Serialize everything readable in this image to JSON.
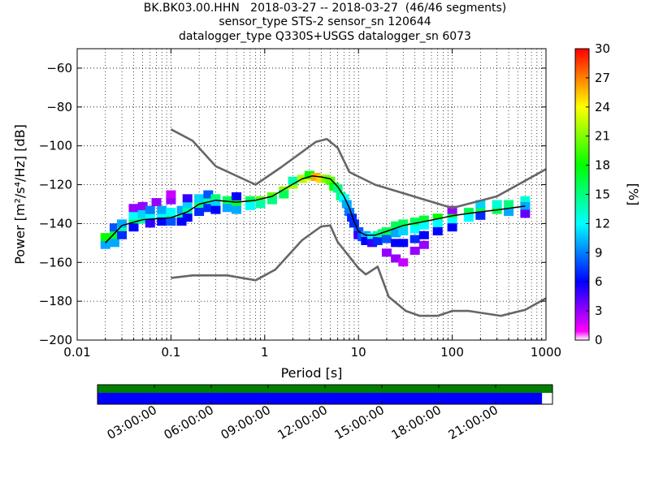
{
  "header": {
    "line1": "BK.BK03.00.HHN   2018-03-27 -- 2018-03-27  (46/46 segments)",
    "line2": "sensor_type STS-2 sensor_sn 120644",
    "line3": "datalogger_type Q330S+USGS datalogger_sn 6073"
  },
  "colorbar": {
    "label": "[%]",
    "ticks": [
      "0",
      "3",
      "6",
      "9",
      "12",
      "15",
      "18",
      "21",
      "24",
      "27",
      "30"
    ]
  },
  "timeline": {
    "labels": [
      "03:00:00",
      "06:00:00",
      "09:00:00",
      "12:00:00",
      "15:00:00",
      "18:00:00",
      "21:00:00"
    ],
    "coverage_fraction": 0.977,
    "colors": {
      "segments": "#008000",
      "coverage": "#0000ff"
    }
  },
  "chart_data": {
    "type": "heatmap",
    "title": "BK.BK03.00.HHN   2018-03-27 -- 2018-03-27  (46/46 segments)",
    "xlabel": "Period [s]",
    "ylabel": "Power [m²/s⁴/Hz] [dB]",
    "xscale": "log",
    "xlim": [
      0.01,
      1000
    ],
    "ylim": [
      -200,
      -50
    ],
    "xticks": [
      0.01,
      0.1,
      1,
      10,
      100,
      1000
    ],
    "xtick_labels": [
      "0.01",
      "0.1",
      "1",
      "10",
      "100",
      "1000"
    ],
    "yticks": [
      -200,
      -180,
      -160,
      -140,
      -120,
      -100,
      -80,
      -60
    ],
    "ytick_labels": [
      "−200",
      "−180",
      "−160",
      "−140",
      "−120",
      "−100",
      "−80",
      "−60"
    ],
    "grid": true,
    "series": [
      {
        "role": "noise-model-high",
        "color": "#666666",
        "x": [
          0.1,
          0.17,
          0.3,
          0.8,
          1.5,
          3.5,
          4.6,
          6,
          8,
          15,
          100,
          300,
          1000
        ],
        "y": [
          -91.5,
          -97.4,
          -110.5,
          -120,
          -111,
          -98,
          -96.5,
          -101,
          -113.5,
          -120,
          -132,
          -126,
          -112
        ]
      },
      {
        "role": "noise-model-low",
        "color": "#666666",
        "x": [
          0.1,
          0.17,
          0.4,
          0.8,
          1.3,
          2.5,
          4,
          5,
          6,
          10,
          12,
          16,
          21,
          32,
          45,
          70,
          100,
          150,
          330,
          600,
          1000
        ],
        "y": [
          -168,
          -166.7,
          -166.7,
          -169.2,
          -163.7,
          -148.6,
          -141.5,
          -141,
          -149.5,
          -163,
          -166.2,
          -162.2,
          -177.7,
          -185,
          -187.5,
          -187.5,
          -185,
          -185,
          -187.5,
          -184.4,
          -178.5
        ]
      },
      {
        "role": "mean",
        "color": "#000000",
        "x": [
          0.02,
          0.03,
          0.05,
          0.1,
          0.15,
          0.2,
          0.3,
          0.5,
          0.8,
          1.2,
          1.8,
          2.5,
          3.2,
          4,
          5,
          6,
          7,
          8,
          9,
          10,
          12,
          15,
          20,
          30,
          50,
          80,
          100,
          200,
          300,
          600
        ],
        "y": [
          -150,
          -141,
          -138,
          -137,
          -134,
          -130,
          -128,
          -129,
          -128,
          -126,
          -121,
          -117,
          -115.5,
          -116,
          -117,
          -121,
          -126,
          -132,
          -139,
          -144,
          -146,
          -146,
          -144,
          -141,
          -139,
          -137,
          -136,
          -134,
          -133,
          -131
        ]
      }
    ],
    "density": {
      "unit": "%",
      "range": [
        0,
        30
      ],
      "bins": [
        [
          0.02,
          -151,
          10
        ],
        [
          0.02,
          -147,
          18
        ],
        [
          0.025,
          -146,
          17
        ],
        [
          0.025,
          -150,
          10
        ],
        [
          0.025,
          -142,
          8
        ],
        [
          0.03,
          -143,
          14
        ],
        [
          0.03,
          -140,
          10
        ],
        [
          0.03,
          -146,
          7
        ],
        [
          0.04,
          -139,
          16
        ],
        [
          0.04,
          -136,
          12
        ],
        [
          0.04,
          -142,
          6
        ],
        [
          0.04,
          -132,
          3
        ],
        [
          0.05,
          -138,
          14
        ],
        [
          0.05,
          -135,
          11
        ],
        [
          0.05,
          -131,
          3
        ],
        [
          0.06,
          -137,
          12
        ],
        [
          0.06,
          -133,
          9
        ],
        [
          0.06,
          -140,
          5
        ],
        [
          0.07,
          -129,
          3
        ],
        [
          0.08,
          -136,
          12
        ],
        [
          0.08,
          -133,
          10
        ],
        [
          0.08,
          -139,
          6
        ],
        [
          0.1,
          -137,
          15
        ],
        [
          0.1,
          -134,
          12
        ],
        [
          0.1,
          -139,
          8
        ],
        [
          0.1,
          -128,
          3
        ],
        [
          0.1,
          -125,
          2
        ],
        [
          0.13,
          -136,
          14
        ],
        [
          0.13,
          -133,
          10
        ],
        [
          0.13,
          -139,
          6
        ],
        [
          0.15,
          -133,
          14
        ],
        [
          0.15,
          -130,
          11
        ],
        [
          0.15,
          -127,
          5
        ],
        [
          0.15,
          -137,
          6
        ],
        [
          0.2,
          -130,
          15
        ],
        [
          0.2,
          -127,
          11
        ],
        [
          0.2,
          -134,
          7
        ],
        [
          0.25,
          -128,
          14
        ],
        [
          0.25,
          -125,
          8
        ],
        [
          0.25,
          -132,
          7
        ],
        [
          0.3,
          -127,
          15
        ],
        [
          0.3,
          -130,
          11
        ],
        [
          0.3,
          -133,
          6
        ],
        [
          0.4,
          -128,
          16
        ],
        [
          0.4,
          -132,
          10
        ],
        [
          0.5,
          -129,
          17
        ],
        [
          0.5,
          -133,
          10
        ],
        [
          0.5,
          -126,
          6
        ],
        [
          0.7,
          -128,
          16
        ],
        [
          0.7,
          -131,
          12
        ],
        [
          0.9,
          -128,
          20
        ],
        [
          0.9,
          -130,
          14
        ],
        [
          1.2,
          -126,
          20
        ],
        [
          1.2,
          -128,
          15
        ],
        [
          1.6,
          -123,
          21
        ],
        [
          1.6,
          -125,
          16
        ],
        [
          2,
          -120,
          22
        ],
        [
          2,
          -118,
          14
        ],
        [
          2.5,
          -117,
          22
        ],
        [
          3,
          -116,
          24
        ],
        [
          3,
          -115,
          18
        ],
        [
          3.5,
          -116,
          26
        ],
        [
          4,
          -117,
          25
        ],
        [
          4.5,
          -117,
          21
        ],
        [
          5,
          -118,
          20
        ],
        [
          5.5,
          -121,
          18
        ],
        [
          6,
          -122,
          15
        ],
        [
          6.5,
          -126,
          15
        ],
        [
          7,
          -127,
          12
        ],
        [
          7.5,
          -130,
          10
        ],
        [
          8,
          -134,
          9
        ],
        [
          8.5,
          -137,
          7
        ],
        [
          9,
          -140,
          7
        ],
        [
          10,
          -144,
          8
        ],
        [
          10,
          -146,
          5
        ],
        [
          11,
          -147,
          8
        ],
        [
          12,
          -146,
          10
        ],
        [
          12,
          -149,
          6
        ],
        [
          14,
          -147,
          12
        ],
        [
          14,
          -150,
          5
        ],
        [
          16,
          -146,
          14
        ],
        [
          16,
          -149,
          7
        ],
        [
          18,
          -145,
          15
        ],
        [
          20,
          -144,
          16
        ],
        [
          20,
          -148,
          8
        ],
        [
          20,
          -155,
          3
        ],
        [
          25,
          -141,
          16
        ],
        [
          25,
          -145,
          10
        ],
        [
          25,
          -150,
          6
        ],
        [
          25,
          -158,
          3
        ],
        [
          30,
          -140,
          16
        ],
        [
          30,
          -144,
          11
        ],
        [
          30,
          -150,
          6
        ],
        [
          30,
          -160,
          2
        ],
        [
          40,
          -139,
          16
        ],
        [
          40,
          -143,
          12
        ],
        [
          40,
          -148,
          7
        ],
        [
          40,
          -154,
          3
        ],
        [
          50,
          -138,
          17
        ],
        [
          50,
          -141,
          12
        ],
        [
          50,
          -146,
          6
        ],
        [
          50,
          -151,
          3
        ],
        [
          70,
          -137,
          18
        ],
        [
          70,
          -140,
          12
        ],
        [
          70,
          -144,
          6
        ],
        [
          100,
          -136,
          17
        ],
        [
          100,
          -139,
          12
        ],
        [
          100,
          -142,
          6
        ],
        [
          100,
          -133,
          3
        ],
        [
          150,
          -134,
          16
        ],
        [
          150,
          -137,
          12
        ],
        [
          200,
          -133,
          16
        ],
        [
          200,
          -130,
          11
        ],
        [
          200,
          -136,
          7
        ],
        [
          300,
          -133,
          16
        ],
        [
          300,
          -130,
          13
        ],
        [
          400,
          -130,
          15
        ],
        [
          400,
          -134,
          10
        ],
        [
          600,
          -128,
          13
        ],
        [
          600,
          -131,
          10
        ],
        [
          600,
          -135,
          4
        ]
      ]
    }
  }
}
